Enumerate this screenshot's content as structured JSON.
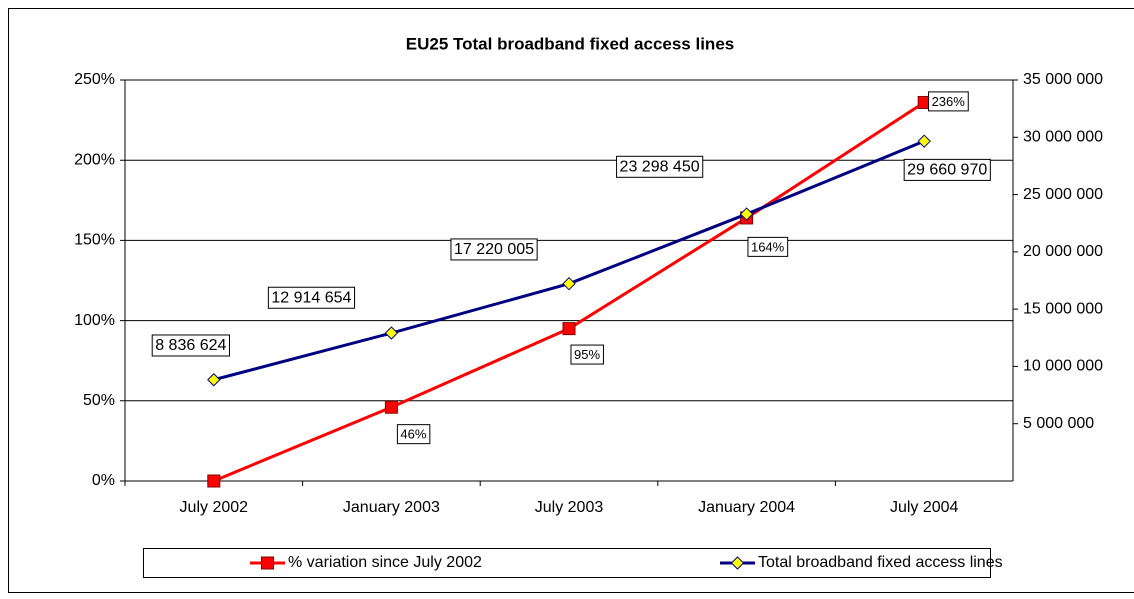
{
  "chart_data": {
    "type": "line",
    "title": "EU25 Total broadband fixed access lines",
    "categories": [
      "July 2002",
      "January 2003",
      "July 2003",
      "January 2004",
      "July 2004"
    ],
    "series": [
      {
        "name": "% variation since July 2002",
        "color": "#ff0000",
        "marker_color": "#ff0000",
        "values": [
          0,
          46,
          95,
          164,
          236
        ],
        "value_labels": [
          null,
          "46%",
          "95%",
          "164%",
          "236%"
        ]
      },
      {
        "name": "Total broadband fixed access lines",
        "color": "#000080",
        "marker_color": "#ffff00",
        "axis": "y2",
        "values": [
          8836624,
          12914654,
          17220005,
          23298450,
          29660970
        ],
        "value_labels": [
          "8 836 624",
          "12 914 654",
          "17 220 005",
          "23 298 450",
          "29 660 970"
        ]
      }
    ],
    "ylim": [
      0,
      250
    ],
    "yticks": [
      {
        "value": 0,
        "label": "0%"
      },
      {
        "value": 50,
        "label": "50%"
      },
      {
        "value": 100,
        "label": "100%"
      },
      {
        "value": 150,
        "label": "150%"
      },
      {
        "value": 200,
        "label": "200%"
      },
      {
        "value": 250,
        "label": "250%"
      }
    ],
    "y2lim": [
      0,
      35000000
    ],
    "y2ticks": [
      {
        "value": 5000000,
        "label": "5 000 000"
      },
      {
        "value": 10000000,
        "label": "10 000 000"
      },
      {
        "value": 15000000,
        "label": "15 000 000"
      },
      {
        "value": 20000000,
        "label": "20 000 000"
      },
      {
        "value": 25000000,
        "label": "25 000 000"
      },
      {
        "value": 30000000,
        "label": "30 000 000"
      },
      {
        "value": 35000000,
        "label": "35 000 000"
      }
    ],
    "grid": true,
    "legend": "bottom"
  }
}
